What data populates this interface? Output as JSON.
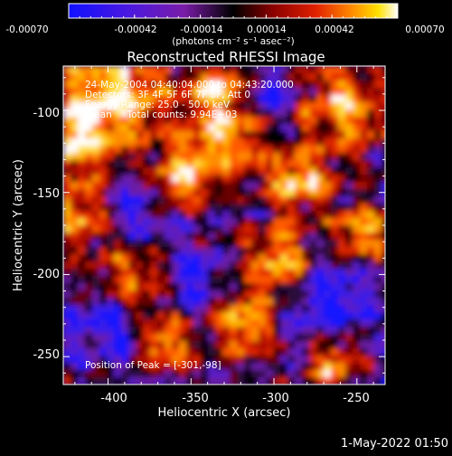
{
  "colorbar": {
    "tick_labels": [
      "-0.00070",
      "-0.00042",
      "-0.00014",
      "0.00014",
      "0.00042",
      "0.00070"
    ],
    "units_label": "(photons cm⁻² s⁻¹ asec⁻²)",
    "colors": [
      "#1010ff",
      "#5a10d8",
      "#8a1a9a",
      "#000000",
      "#7a0000",
      "#e02000",
      "#ff8000",
      "#ffd000",
      "#ffffff"
    ]
  },
  "plot": {
    "title": "Reconstructed RHESSI Image",
    "xlabel": "Heliocentric X (arcsec)",
    "ylabel": "Heliocentric Y (arcsec)",
    "x_ticks": [
      "-400",
      "-350",
      "-300",
      "-250"
    ],
    "y_ticks": [
      "-100",
      "-150",
      "-200",
      "-250"
    ],
    "xlim": [
      -427,
      -233
    ],
    "ylim": [
      -267,
      -73
    ]
  },
  "info": {
    "time_range": "24-May-2004 04:40:04.000 to 04:43:20.000",
    "detectors": "Detectors: 3F 4F 5F 6F 7F 8F, Att 0",
    "energy_range": "Energy Range: 25.0 - 50.0 keV",
    "clean_counts": "Clean     Total counts: 9.94E+03",
    "peak": "Position of Peak = [-301,-98]"
  },
  "timestamp": "1-May-2022 01:50"
}
